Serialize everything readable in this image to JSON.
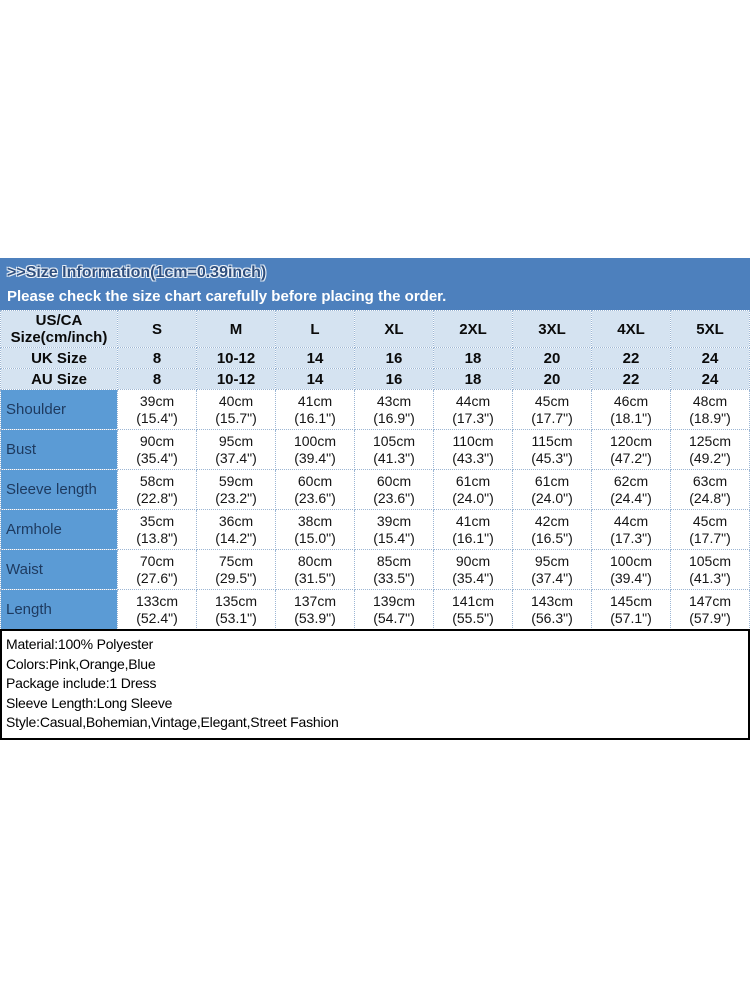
{
  "banner": {
    "title": ">>Size Information(1cm=0.39inch)",
    "subtitle": "Please check the size chart carefully before placing the order."
  },
  "size_chart": {
    "corner_label_lines": [
      "US/CA",
      "Size(cm/inch)"
    ],
    "sizes": [
      "S",
      "M",
      "L",
      "XL",
      "2XL",
      "3XL",
      "4XL",
      "5XL"
    ],
    "region_rows": [
      {
        "label": "UK Size",
        "values": [
          "8",
          "10-12",
          "14",
          "16",
          "18",
          "20",
          "22",
          "24"
        ]
      },
      {
        "label": "AU Size",
        "values": [
          "8",
          "10-12",
          "14",
          "16",
          "18",
          "20",
          "22",
          "24"
        ]
      }
    ],
    "measurements": [
      {
        "label": "Shoulder",
        "cm": [
          "39cm",
          "40cm",
          "41cm",
          "43cm",
          "44cm",
          "45cm",
          "46cm",
          "48cm"
        ],
        "inch": [
          "(15.4\")",
          "(15.7\")",
          "(16.1\")",
          "(16.9\")",
          "(17.3\")",
          "(17.7\")",
          "(18.1\")",
          "(18.9\")"
        ]
      },
      {
        "label": "Bust",
        "cm": [
          "90cm",
          "95cm",
          "100cm",
          "105cm",
          "110cm",
          "115cm",
          "120cm",
          "125cm"
        ],
        "inch": [
          "(35.4\")",
          "(37.4\")",
          "(39.4\")",
          "(41.3\")",
          "(43.3\")",
          "(45.3\")",
          "(47.2\")",
          "(49.2\")"
        ]
      },
      {
        "label": "Sleeve length",
        "cm": [
          "58cm",
          "59cm",
          "60cm",
          "60cm",
          "61cm",
          "61cm",
          "62cm",
          "63cm"
        ],
        "inch": [
          "(22.8\")",
          "(23.2\")",
          "(23.6\")",
          "(23.6\")",
          "(24.0\")",
          "(24.0\")",
          "(24.4\")",
          "(24.8\")"
        ]
      },
      {
        "label": "Armhole",
        "cm": [
          "35cm",
          "36cm",
          "38cm",
          "39cm",
          "41cm",
          "42cm",
          "44cm",
          "45cm"
        ],
        "inch": [
          "(13.8\")",
          "(14.2\")",
          "(15.0\")",
          "(15.4\")",
          "(16.1\")",
          "(16.5\")",
          "(17.3\")",
          "(17.7\")"
        ]
      },
      {
        "label": "Waist",
        "cm": [
          "70cm",
          "75cm",
          "80cm",
          "85cm",
          "90cm",
          "95cm",
          "100cm",
          "105cm"
        ],
        "inch": [
          "(27.6\")",
          "(29.5\")",
          "(31.5\")",
          "(33.5\")",
          "(35.4\")",
          "(37.4\")",
          "(39.4\")",
          "(41.3\")"
        ]
      },
      {
        "label": "Length",
        "cm": [
          "133cm",
          "135cm",
          "137cm",
          "139cm",
          "141cm",
          "143cm",
          "145cm",
          "147cm"
        ],
        "inch": [
          "(52.4\")",
          "(53.1\")",
          "(53.9\")",
          "(54.7\")",
          "(55.5\")",
          "(56.3\")",
          "(57.1\")",
          "(57.9\")"
        ]
      }
    ]
  },
  "details": {
    "lines": [
      "Material:100% Polyester",
      "Colors:Pink,Orange,Blue",
      "Package include:1 Dress",
      "Sleeve Length:Long Sleeve",
      "Style:Casual,Bohemian,Vintage,Elegant,Street Fashion"
    ]
  },
  "colors": {
    "banner_bg": "#4d80bd",
    "banner_title_text": "#2d4e7e",
    "banner_subtitle_text": "#ffffff",
    "header_row_bg": "#d5e3f1",
    "measurement_label_bg": "#5b9bd5",
    "table_border": "#9cb6d4",
    "details_border": "#000000"
  }
}
